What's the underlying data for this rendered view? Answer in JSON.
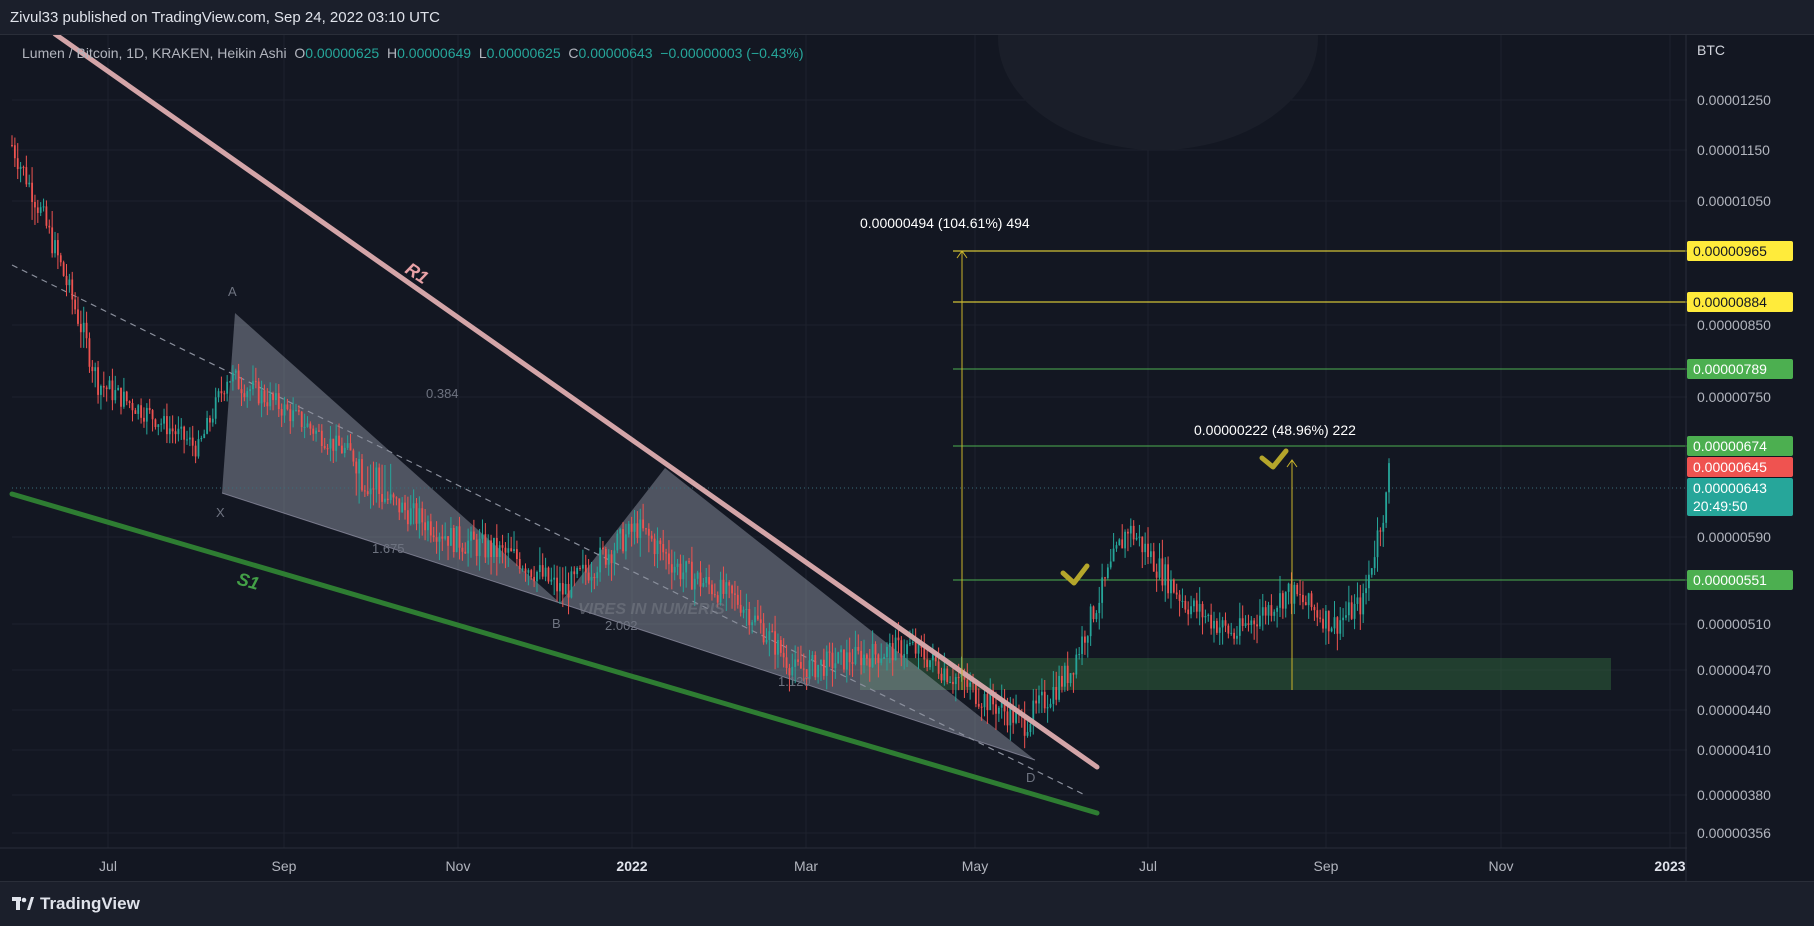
{
  "header": {
    "publisher": "Zivul33 published on TradingView.com, Sep 24, 2022 03:10 UTC"
  },
  "legend": {
    "symbol": "Lumen / Bitcoin, 1D, KRAKEN, Heikin Ashi",
    "o_label": "O",
    "o": "0.00000625",
    "h_label": "H",
    "h": "0.00000649",
    "l_label": "L",
    "l": "0.00000625",
    "c_label": "C",
    "c": "0.00000643",
    "change": "−0.00000003 (−0.43%)"
  },
  "footer": {
    "brand": "TradingView"
  },
  "colors": {
    "background": "#131722",
    "up": "#26a69a",
    "down": "#ef5350",
    "yellow": "#ffeb3b",
    "green_line": "#4caf50",
    "resistance": "#d4a5a8",
    "support": "#2e7d32"
  },
  "chart_data": {
    "type": "candlestick",
    "currency": "BTC",
    "y_ticks": [
      "0.00001250",
      "0.00001150",
      "0.00001050",
      "0.00000850",
      "0.00000750",
      "0.00000590",
      "0.00000510",
      "0.00000470",
      "0.00000440",
      "0.00000410",
      "0.00000380",
      "0.00000356"
    ],
    "x_ticks": [
      "Jul",
      "Sep",
      "Nov",
      "2022",
      "Mar",
      "May",
      "Jul",
      "Sep",
      "Nov",
      "2023"
    ],
    "price_flags": [
      {
        "value": "0.00000965",
        "style": "yellow"
      },
      {
        "value": "0.00000884",
        "style": "yellow"
      },
      {
        "value": "0.00000789",
        "style": "green"
      },
      {
        "value": "0.00000674",
        "style": "green"
      },
      {
        "value": "0.00000645",
        "style": "red"
      },
      {
        "value": "0.00000643",
        "style": "teal",
        "countdown": "20:49:50"
      },
      {
        "value": "0.00000551",
        "style": "green"
      }
    ],
    "horizontal_levels": [
      9.65e-06,
      8.84e-06,
      7.89e-06,
      6.74e-06,
      5.51e-06
    ],
    "measure_annotations": [
      {
        "text": "0.00000494 (104.61%) 494"
      },
      {
        "text": "0.00000222 (48.96%) 222"
      }
    ],
    "trendline_labels": [
      "R1",
      "S1"
    ],
    "pattern_labels": [
      "A",
      "X",
      "B",
      "D",
      "0.384",
      "1.675",
      "2.002",
      "1.120"
    ],
    "watermark_text": "VIRES IN NUMERIS",
    "series": {
      "date_range": [
        "2021-06",
        "2022-09-24"
      ],
      "close_path": [
        [
          "2021-06-01",
          1.16e-05
        ],
        [
          "2021-06-15",
          9.8e-06
        ],
        [
          "2021-07-01",
          7.7e-06
        ],
        [
          "2021-07-20",
          7.2e-06
        ],
        [
          "2021-08-05",
          6.7e-06
        ],
        [
          "2021-08-15",
          7.8e-06
        ],
        [
          "2021-09-01",
          7.4e-06
        ],
        [
          "2021-09-20",
          6.8e-06
        ],
        [
          "2021-10-10",
          6.3e-06
        ],
        [
          "2021-11-01",
          5.9e-06
        ],
        [
          "2021-11-25",
          5.7e-06
        ],
        [
          "2021-12-10",
          5.4e-06
        ],
        [
          "2022-01-05",
          6e-06
        ],
        [
          "2022-01-20",
          5.6e-06
        ],
        [
          "2022-02-10",
          5.3e-06
        ],
        [
          "2022-03-01",
          4.7e-06
        ],
        [
          "2022-03-20",
          4.8e-06
        ],
        [
          "2022-04-10",
          4.9e-06
        ],
        [
          "2022-05-05",
          4.5e-06
        ],
        [
          "2022-05-20",
          4.3e-06
        ],
        [
          "2022-06-05",
          4.7e-06
        ],
        [
          "2022-06-25",
          6e-06
        ],
        [
          "2022-07-15",
          5.3e-06
        ],
        [
          "2022-08-01",
          5e-06
        ],
        [
          "2022-08-20",
          5.4e-06
        ],
        [
          "2022-09-05",
          5.1e-06
        ],
        [
          "2022-09-15",
          5.3e-06
        ],
        [
          "2022-09-24",
          6.43e-06
        ]
      ]
    }
  }
}
